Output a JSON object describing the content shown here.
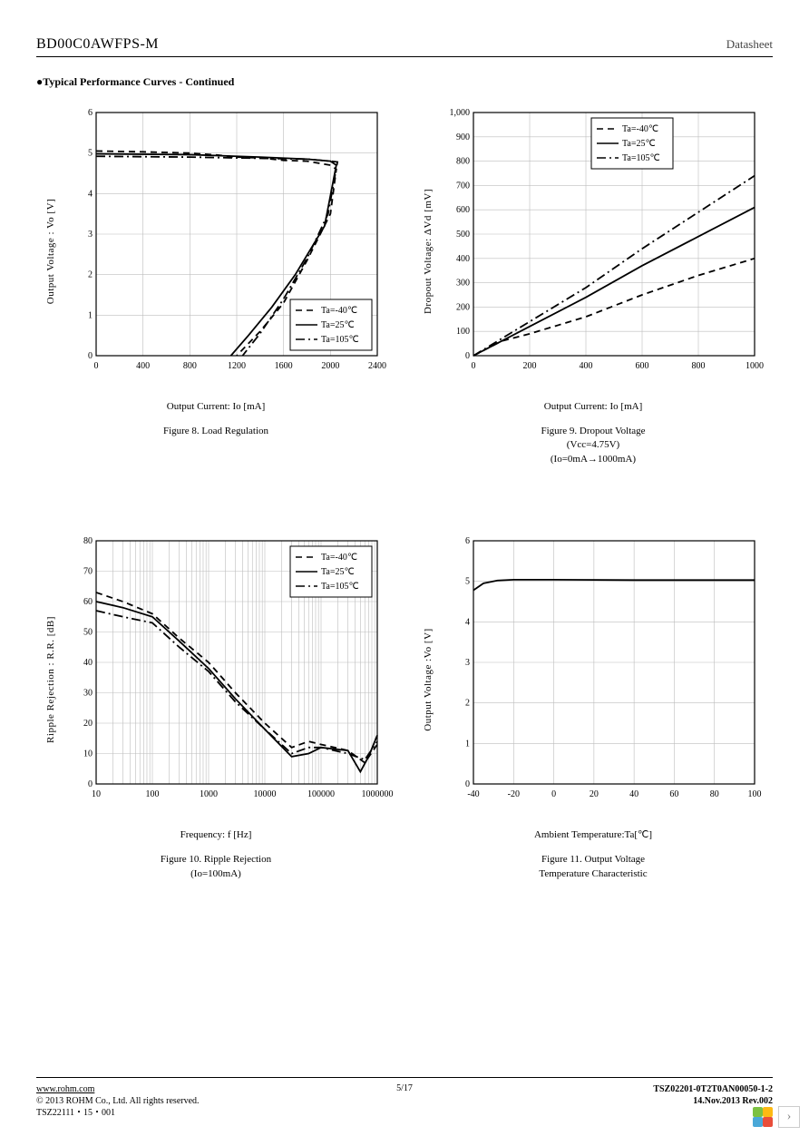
{
  "header": {
    "part_no": "BD00C0AWFPS-M",
    "doc_type": "Datasheet"
  },
  "section_title": "Typical Performance Curves - Continued",
  "legend_common": {
    "items": [
      "Ta=-40℃",
      "Ta=25℃",
      "Ta=105℃"
    ]
  },
  "line_styles": {
    "dash": "7,5",
    "solid": "",
    "dashdot": "10,4,2,4"
  },
  "colors": {
    "stroke": "#000000",
    "grid": "#bdbdbd",
    "bg": "#ffffff"
  },
  "charts": {
    "fig8": {
      "type": "line",
      "xlabel": "Output Current: Io [mA]",
      "ylabel": "Output Voltage : Vo  [V]",
      "xlim": [
        0,
        2400
      ],
      "xticks": [
        0,
        400,
        800,
        1200,
        1600,
        2000,
        2400
      ],
      "ylim": [
        0,
        6
      ],
      "yticks": [
        0,
        1,
        2,
        3,
        4,
        5,
        6
      ],
      "legend_pos": "bottom-right",
      "series": [
        {
          "style": "dash",
          "pts": [
            [
              0,
              5.05
            ],
            [
              400,
              5.03
            ],
            [
              800,
              5.0
            ],
            [
              1040,
              4.95
            ],
            [
              1200,
              4.9
            ],
            [
              1400,
              4.88
            ],
            [
              1600,
              4.82
            ],
            [
              1800,
              4.8
            ],
            [
              2000,
              4.7
            ],
            [
              2050,
              4.6
            ],
            [
              2000,
              3.5
            ],
            [
              1800,
              2.35
            ],
            [
              1600,
              1.3
            ],
            [
              1400,
              0.6
            ],
            [
              1200,
              0.0
            ]
          ]
        },
        {
          "style": "solid",
          "pts": [
            [
              0,
              4.98
            ],
            [
              800,
              4.96
            ],
            [
              1400,
              4.9
            ],
            [
              1800,
              4.85
            ],
            [
              2000,
              4.8
            ],
            [
              2050,
              4.7
            ],
            [
              1950,
              3.2
            ],
            [
              1700,
              2.0
            ],
            [
              1500,
              1.2
            ],
            [
              1300,
              0.5
            ],
            [
              1150,
              0.0
            ]
          ]
        },
        {
          "style": "dashdot",
          "pts": [
            [
              0,
              4.92
            ],
            [
              800,
              4.9
            ],
            [
              1400,
              4.87
            ],
            [
              1800,
              4.85
            ],
            [
              2000,
              4.8
            ],
            [
              2060,
              4.78
            ],
            [
              1980,
              3.5
            ],
            [
              1800,
              2.4
            ],
            [
              1600,
              1.4
            ],
            [
              1400,
              0.55
            ],
            [
              1250,
              0.0
            ]
          ]
        }
      ],
      "caption": [
        "Figure 8. Load Regulation"
      ]
    },
    "fig9": {
      "type": "line",
      "xlabel": "Output Current: Io [mA]",
      "ylabel": "Dropout Voltage:  ΔVd [mV]",
      "xlim": [
        0,
        1000
      ],
      "xticks": [
        0,
        200,
        400,
        600,
        800,
        1000
      ],
      "ylim": [
        0,
        1000
      ],
      "yticks": [
        0,
        100,
        200,
        300,
        400,
        500,
        600,
        700,
        800,
        900,
        1000
      ],
      "legend_pos": "top-center",
      "series": [
        {
          "style": "dash",
          "pts": [
            [
              0,
              0
            ],
            [
              100,
              60
            ],
            [
              200,
              90
            ],
            [
              400,
              160
            ],
            [
              600,
              250
            ],
            [
              800,
              330
            ],
            [
              1000,
              400
            ]
          ]
        },
        {
          "style": "solid",
          "pts": [
            [
              0,
              0
            ],
            [
              200,
              120
            ],
            [
              400,
              240
            ],
            [
              600,
              370
            ],
            [
              800,
              490
            ],
            [
              1000,
              610
            ]
          ]
        },
        {
          "style": "dashdot",
          "pts": [
            [
              0,
              0
            ],
            [
              200,
              140
            ],
            [
              400,
              280
            ],
            [
              600,
              440
            ],
            [
              800,
              590
            ],
            [
              1000,
              740
            ]
          ]
        }
      ],
      "caption": [
        "Figure 9. Dropout Voltage",
        "(Vcc=4.75V)",
        "(Io=0mA→1000mA)"
      ]
    },
    "fig10": {
      "type": "line-logx",
      "xlabel": "Frequency: f  [Hz]",
      "ylabel": "Ripple Rejection : R.R.  [dB]",
      "xlim": [
        10,
        1000000
      ],
      "xticks": [
        10,
        100,
        1000,
        10000,
        100000,
        1000000
      ],
      "ylim": [
        0,
        80
      ],
      "yticks": [
        0,
        10,
        20,
        30,
        40,
        50,
        60,
        70,
        80
      ],
      "legend_pos": "top-right",
      "series": [
        {
          "style": "dash",
          "pts": [
            [
              10,
              63
            ],
            [
              30,
              60
            ],
            [
              100,
              56
            ],
            [
              300,
              48
            ],
            [
              1000,
              40
            ],
            [
              3000,
              30
            ],
            [
              10000,
              20
            ],
            [
              30000,
              12
            ],
            [
              60000,
              14
            ],
            [
              100000,
              13
            ],
            [
              300000,
              11
            ],
            [
              600000,
              7
            ],
            [
              1000000,
              13
            ]
          ]
        },
        {
          "style": "solid",
          "pts": [
            [
              10,
              60
            ],
            [
              30,
              58
            ],
            [
              100,
              55
            ],
            [
              300,
              47
            ],
            [
              1000,
              38
            ],
            [
              3000,
              28
            ],
            [
              10000,
              18
            ],
            [
              30000,
              9
            ],
            [
              60000,
              10
            ],
            [
              100000,
              12
            ],
            [
              300000,
              11
            ],
            [
              500000,
              4
            ],
            [
              700000,
              9
            ],
            [
              1000000,
              16
            ]
          ]
        },
        {
          "style": "dashdot",
          "pts": [
            [
              10,
              57
            ],
            [
              30,
              55
            ],
            [
              100,
              53
            ],
            [
              300,
              45
            ],
            [
              1000,
              37
            ],
            [
              3000,
              27
            ],
            [
              10000,
              18
            ],
            [
              30000,
              10
            ],
            [
              60000,
              12
            ],
            [
              100000,
              12
            ],
            [
              300000,
              10
            ],
            [
              600000,
              8
            ],
            [
              1000000,
              14
            ]
          ]
        }
      ],
      "caption": [
        "Figure 10. Ripple Rejection",
        "(Io=100mA)"
      ]
    },
    "fig11": {
      "type": "line",
      "xlabel": "Ambient Temperature:Ta[℃]",
      "ylabel": "Output Voltage :Vo  [V]",
      "xlim": [
        -40,
        100
      ],
      "xticks": [
        -40,
        -20,
        0,
        20,
        40,
        60,
        80,
        100
      ],
      "ylim": [
        0,
        6
      ],
      "yticks": [
        0,
        1,
        2,
        3,
        4,
        5,
        6
      ],
      "legend_pos": "none",
      "series": [
        {
          "style": "solid",
          "pts": [
            [
              -40,
              4.78
            ],
            [
              -35,
              4.95
            ],
            [
              -28,
              5.02
            ],
            [
              -20,
              5.04
            ],
            [
              0,
              5.04
            ],
            [
              40,
              5.03
            ],
            [
              80,
              5.03
            ],
            [
              100,
              5.03
            ]
          ]
        }
      ],
      "caption": [
        "Figure 11. Output Voltage",
        "Temperature Characteristic"
      ]
    }
  },
  "footer": {
    "url": "www.rohm.com",
    "copyright": "© 2013 ROHM Co., Ltd. All rights reserved.",
    "code": "TSZ22111・15・001",
    "page": "5/17",
    "doc_no": "TSZ02201-0T2T0AN00050-1-2",
    "date_rev": "14.Nov.2013 Rev.002"
  },
  "logo_colors": [
    "#7cc142",
    "#fdb913",
    "#4aa8d8",
    "#e94e3a"
  ]
}
